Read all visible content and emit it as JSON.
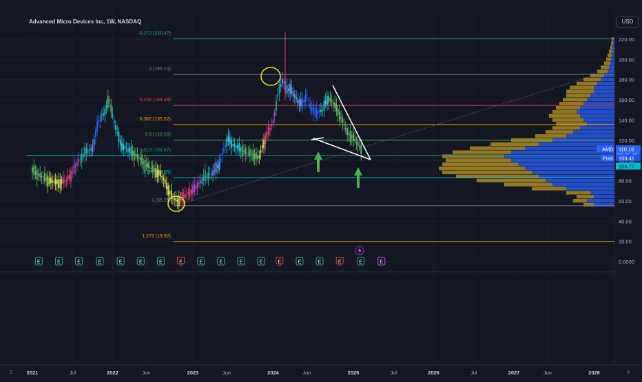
{
  "header": {
    "symbol_title": "Advanced Micro Devices Inc, 1W, NASDAQ",
    "currency": "USD"
  },
  "chart_data": {
    "type": "candlestick",
    "title": "Advanced Micro Devices Inc, 1W, NASDAQ",
    "ylim": [
      0,
      235
    ],
    "y_ticks": [
      0,
      20,
      40,
      60,
      80,
      100,
      120,
      140,
      160,
      180,
      200,
      220
    ],
    "y_tick_labels": [
      "0.0000",
      "20.00",
      "40.00",
      "60.00",
      "80.00",
      "100.00",
      "120.00",
      "140.00",
      "160.00",
      "180.00",
      "200.00",
      "220.00"
    ],
    "x_ticks": [
      {
        "label": "2021",
        "t": 2021.0,
        "year": true
      },
      {
        "label": "Jul",
        "t": 2021.5,
        "year": false
      },
      {
        "label": "2022",
        "t": 2022.0,
        "year": true
      },
      {
        "label": "Jun",
        "t": 2022.42,
        "year": false
      },
      {
        "label": "2023",
        "t": 2023.0,
        "year": true
      },
      {
        "label": "Jun",
        "t": 2023.42,
        "year": false
      },
      {
        "label": "2024",
        "t": 2024.0,
        "year": true
      },
      {
        "label": "Jun",
        "t": 2024.42,
        "year": false
      },
      {
        "label": "2025",
        "t": 2025.0,
        "year": true
      },
      {
        "label": "Jul",
        "t": 2025.5,
        "year": false
      },
      {
        "label": "2026",
        "t": 2026.0,
        "year": true
      },
      {
        "label": "Jul",
        "t": 2026.5,
        "year": false
      },
      {
        "label": "2027",
        "t": 2027.0,
        "year": true
      },
      {
        "label": "Jun",
        "t": 2027.42,
        "year": false
      },
      {
        "label": "2028",
        "t": 2028.0,
        "year": true
      }
    ],
    "price_path": [
      [
        2021.0,
        90
      ],
      [
        2021.08,
        86
      ],
      [
        2021.16,
        82
      ],
      [
        2021.25,
        79
      ],
      [
        2021.33,
        78
      ],
      [
        2021.42,
        80
      ],
      [
        2021.5,
        88
      ],
      [
        2021.58,
        100
      ],
      [
        2021.66,
        108
      ],
      [
        2021.75,
        112
      ],
      [
        2021.83,
        140
      ],
      [
        2021.9,
        148
      ],
      [
        2021.96,
        160
      ],
      [
        2022.02,
        138
      ],
      [
        2022.1,
        116
      ],
      [
        2022.2,
        110
      ],
      [
        2022.3,
        105
      ],
      [
        2022.38,
        98
      ],
      [
        2022.45,
        94
      ],
      [
        2022.52,
        90
      ],
      [
        2022.6,
        86
      ],
      [
        2022.66,
        78
      ],
      [
        2022.72,
        66
      ],
      [
        2022.8,
        60
      ],
      [
        2022.86,
        62
      ],
      [
        2022.94,
        68
      ],
      [
        2023.0,
        70
      ],
      [
        2023.08,
        78
      ],
      [
        2023.16,
        84
      ],
      [
        2023.25,
        88
      ],
      [
        2023.33,
        96
      ],
      [
        2023.38,
        110
      ],
      [
        2023.45,
        122
      ],
      [
        2023.5,
        115
      ],
      [
        2023.58,
        112
      ],
      [
        2023.66,
        108
      ],
      [
        2023.75,
        106
      ],
      [
        2023.82,
        102
      ],
      [
        2023.86,
        112
      ],
      [
        2023.92,
        125
      ],
      [
        2024.0,
        138
      ],
      [
        2024.06,
        165
      ],
      [
        2024.12,
        180
      ],
      [
        2024.16,
        172
      ],
      [
        2024.24,
        168
      ],
      [
        2024.3,
        160
      ],
      [
        2024.36,
        155
      ],
      [
        2024.42,
        165
      ],
      [
        2024.48,
        150
      ],
      [
        2024.55,
        148
      ],
      [
        2024.62,
        150
      ],
      [
        2024.68,
        162
      ],
      [
        2024.74,
        158
      ],
      [
        2024.8,
        150
      ],
      [
        2024.86,
        140
      ],
      [
        2024.92,
        128
      ],
      [
        2024.98,
        124
      ],
      [
        2025.04,
        118
      ],
      [
        2025.09,
        112
      ]
    ],
    "fib_levels": [
      {
        "label": "-0.272 (220.47)",
        "ratio": -0.272,
        "price": 220.47,
        "color": "#26a69a"
      },
      {
        "label": "0 (185.14)",
        "ratio": 0,
        "price": 185.14,
        "color": "#787b86"
      },
      {
        "label": "0.236 (154.49)",
        "ratio": 0.236,
        "price": 154.49,
        "color": "#f23645"
      },
      {
        "label": "0.382 (135.52)",
        "ratio": 0.382,
        "price": 135.52,
        "color": "#ff9800"
      },
      {
        "label": "0.5 (120.20)",
        "ratio": 0.5,
        "price": 120.2,
        "color": "#4caf50"
      },
      {
        "label": "0.618 (104.87)",
        "ratio": 0.618,
        "price": 104.87,
        "color": "#089981"
      },
      {
        "label": "0.786 (83.05)",
        "ratio": 0.786,
        "price": 83.05,
        "color": "#00bcd4"
      },
      {
        "label": "1 (55.25)",
        "ratio": 1,
        "price": 55.25,
        "color": "#787b86"
      },
      {
        "label": "1.272 (19.92)",
        "ratio": 1.272,
        "price": 19.92,
        "color": "#ff9800"
      }
    ],
    "volume_profile_colors": {
      "up": "#2962ff",
      "down": "#c9a227"
    },
    "earnings_events": [
      {
        "t": 2021.08,
        "label": "E",
        "kind": "neutral"
      },
      {
        "t": 2021.33,
        "label": "E",
        "kind": "neutral"
      },
      {
        "t": 2021.58,
        "label": "E",
        "kind": "neutral"
      },
      {
        "t": 2021.84,
        "label": "E",
        "kind": "neutral"
      },
      {
        "t": 2022.1,
        "label": "E",
        "kind": "neutral"
      },
      {
        "t": 2022.35,
        "label": "E",
        "kind": "neutral"
      },
      {
        "t": 2022.6,
        "label": "E",
        "kind": "neutral"
      },
      {
        "t": 2022.85,
        "label": "E",
        "kind": "negative"
      },
      {
        "t": 2023.1,
        "label": "E",
        "kind": "neutral"
      },
      {
        "t": 2023.35,
        "label": "E",
        "kind": "neutral"
      },
      {
        "t": 2023.6,
        "label": "E",
        "kind": "neutral"
      },
      {
        "t": 2023.85,
        "label": "E",
        "kind": "neutral"
      },
      {
        "t": 2024.08,
        "label": "E",
        "kind": "negative"
      },
      {
        "t": 2024.33,
        "label": "E",
        "kind": "neutral"
      },
      {
        "t": 2024.58,
        "label": "E",
        "kind": "neutral"
      },
      {
        "t": 2024.83,
        "label": "E",
        "kind": "negative"
      },
      {
        "t": 2025.09,
        "label": "E",
        "kind": "neutral"
      },
      {
        "t": 2025.35,
        "label": "E",
        "kind": "future"
      }
    ],
    "price_tags": {
      "symbol": "AMD",
      "last_price": "110.16",
      "countdown": "20:45:43",
      "post_label": "Post",
      "post_price": "109.41",
      "level_price": "106.77"
    },
    "colors": {
      "background": "#131722",
      "grid": "#1e222d",
      "accent_blue": "#2962ff",
      "annotation_yellow": "#f5e31b",
      "annotation_green": "#4caf50"
    }
  },
  "footer": {
    "left_corner": "Z",
    "right_corner": "A"
  }
}
